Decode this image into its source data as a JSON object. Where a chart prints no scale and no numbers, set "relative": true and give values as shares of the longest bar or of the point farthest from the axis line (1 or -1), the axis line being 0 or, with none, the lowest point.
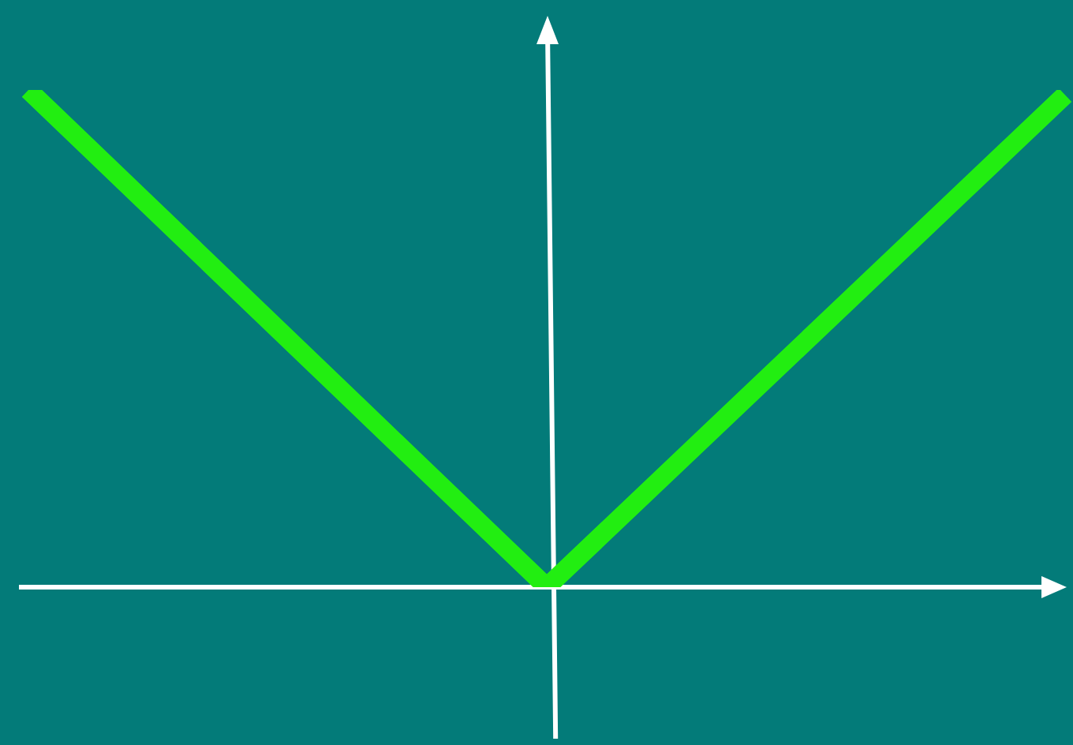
{
  "chart_data": {
    "type": "line",
    "relative": true,
    "categories": [
      null,
      null,
      null
    ],
    "values": [
      1,
      0,
      0.99
    ],
    "color": "#22ee11"
  }
}
